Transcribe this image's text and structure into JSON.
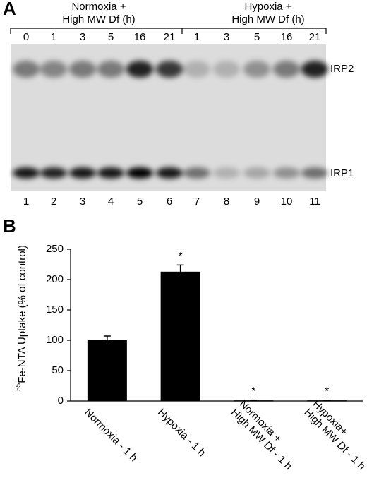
{
  "panel_a": {
    "label": "A",
    "groups": [
      {
        "lines": [
          "Normoxia +",
          "High MW Df (h)"
        ],
        "times": [
          "0",
          "1",
          "3",
          "5",
          "16",
          "21"
        ]
      },
      {
        "lines": [
          "Hypoxia +",
          "High MW Df (h)"
        ],
        "times": [
          "1",
          "3",
          "5",
          "16",
          "21"
        ]
      }
    ],
    "lanes": [
      "1",
      "2",
      "3",
      "4",
      "5",
      "6",
      "7",
      "8",
      "9",
      "10",
      "11"
    ],
    "bands": [
      "IRP2",
      "IRP1"
    ]
  },
  "panel_b_label": "B",
  "chart_data": {
    "type": "bar",
    "y_label_sup": "55",
    "y_label": "Fe-NTA Uptake (% of control)",
    "categories": [
      [
        "Normoxia - 1 h"
      ],
      [
        "Hypoxia - 1 h"
      ],
      [
        "Normoxia +",
        "High MW Df - 1 h"
      ],
      [
        "Hypoxia+",
        "High MW Df - 1 h"
      ]
    ],
    "values": [
      100,
      213,
      1,
      1
    ],
    "errors": [
      7,
      11,
      0.5,
      0.5
    ],
    "markers": [
      null,
      "*",
      "*",
      "*"
    ],
    "color": "#000000",
    "ylim": [
      0,
      250
    ],
    "yticks": [
      0,
      50,
      100,
      150,
      200,
      250
    ],
    "grid": false
  }
}
